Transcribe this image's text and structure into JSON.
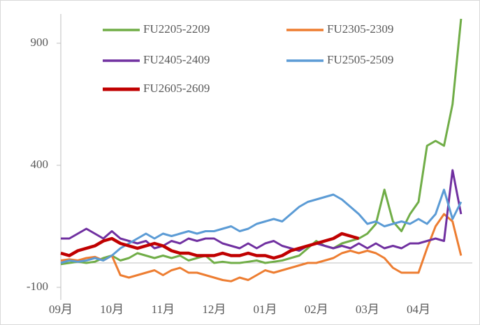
{
  "chart_data": {
    "type": "line",
    "categories": [
      "09月",
      null,
      null,
      null,
      null,
      null,
      "10月",
      null,
      null,
      null,
      null,
      null,
      "11月",
      null,
      null,
      null,
      null,
      null,
      "12月",
      null,
      null,
      null,
      null,
      null,
      "01月",
      null,
      null,
      null,
      null,
      null,
      "02月",
      null,
      null,
      null,
      null,
      null,
      "03月",
      null,
      null,
      null,
      null,
      null,
      "04月",
      null,
      null,
      null,
      null,
      null
    ],
    "series": [
      {
        "name": "FU2205-2209",
        "color": "#70ad47",
        "values": [
          -5,
          0,
          5,
          0,
          5,
          20,
          30,
          10,
          20,
          40,
          30,
          20,
          30,
          20,
          30,
          10,
          20,
          30,
          0,
          5,
          0,
          0,
          5,
          10,
          0,
          5,
          10,
          20,
          30,
          60,
          90,
          70,
          60,
          80,
          90,
          100,
          120,
          160,
          300,
          170,
          130,
          200,
          250,
          480,
          500,
          480,
          650,
          1000
        ]
      },
      {
        "name": "FU2305-2309",
        "color": "#ed7d31",
        "values": [
          10,
          15,
          10,
          20,
          25,
          10,
          30,
          -50,
          -60,
          -50,
          -40,
          -30,
          -50,
          -30,
          -20,
          -40,
          -40,
          -50,
          -60,
          -70,
          -75,
          -60,
          -70,
          -50,
          -30,
          -40,
          -30,
          -20,
          -10,
          0,
          0,
          10,
          20,
          40,
          50,
          40,
          50,
          40,
          20,
          -20,
          -40,
          -40,
          -40,
          60,
          150,
          200,
          170,
          30
        ]
      },
      {
        "name": "FU2405-2409",
        "color": "#7030a0",
        "values": [
          100,
          100,
          120,
          140,
          120,
          100,
          130,
          100,
          90,
          80,
          90,
          60,
          70,
          90,
          80,
          100,
          90,
          100,
          100,
          80,
          70,
          60,
          80,
          60,
          80,
          90,
          70,
          60,
          50,
          70,
          80,
          70,
          60,
          70,
          60,
          80,
          60,
          80,
          60,
          70,
          60,
          80,
          80,
          90,
          100,
          90,
          380,
          200
        ]
      },
      {
        "name": "FU2505-2509",
        "color": "#5b9bd5",
        "values": [
          0,
          10,
          5,
          10,
          20,
          10,
          30,
          60,
          80,
          100,
          120,
          100,
          120,
          110,
          120,
          130,
          120,
          130,
          130,
          140,
          150,
          130,
          140,
          160,
          170,
          180,
          170,
          200,
          230,
          250,
          260,
          270,
          280,
          260,
          230,
          200,
          160,
          170,
          150,
          160,
          170,
          160,
          180,
          160,
          200,
          300,
          180,
          250
        ]
      },
      {
        "name": "FU2605-2609",
        "color": "#c00000",
        "values": [
          40,
          30,
          50,
          60,
          70,
          90,
          100,
          80,
          70,
          60,
          70,
          80,
          70,
          50,
          40,
          40,
          30,
          30,
          30,
          40,
          30,
          30,
          40,
          30,
          30,
          20,
          30,
          50,
          60,
          70,
          80,
          90,
          100,
          120,
          110,
          100,
          null,
          null,
          null,
          null,
          null,
          null,
          null,
          null,
          null,
          null,
          null,
          null
        ]
      }
    ],
    "ylim": [
      -100,
      1000
    ],
    "yticks": [
      -100,
      400,
      900
    ],
    "legend": "top"
  }
}
